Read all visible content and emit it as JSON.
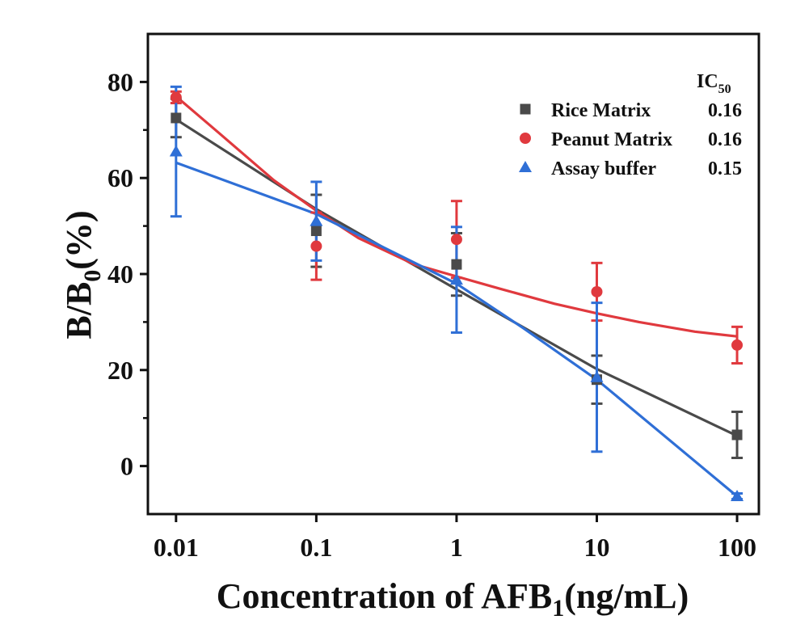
{
  "chart_data": {
    "type": "scatter",
    "x_scale": "log",
    "xlabel_main": "Concentration of AFB",
    "xlabel_sub": "1",
    "xlabel_tail": "(ng/mL)",
    "ylabel_main": "B/B",
    "ylabel_sub": "0",
    "ylabel_tail": "(%)",
    "xlim": [
      0.0063,
      143
    ],
    "ylim": [
      -10,
      90
    ],
    "x_ticks": [
      0.01,
      0.1,
      1,
      10,
      100
    ],
    "x_tick_labels": [
      "0.01",
      "0.1",
      "1",
      "10",
      "100"
    ],
    "y_ticks": [
      0,
      20,
      40,
      60,
      80
    ],
    "y_tick_labels": [
      "0",
      "20",
      "40",
      "60",
      "80"
    ],
    "legend": {
      "position": "top-right",
      "header_main": "IC",
      "header_sub": "50"
    },
    "series": [
      {
        "name": "Rice Matrix",
        "ic50": "0.16",
        "color": "#4a4a4a",
        "marker": "square",
        "x": [
          0.01,
          0.1,
          1,
          10,
          100
        ],
        "y": [
          72.5,
          49,
          42,
          18,
          6.5
        ],
        "err": [
          4.0,
          7.5,
          6.5,
          5.0,
          4.8
        ],
        "fit_x": [
          0.01,
          0.1,
          1,
          10,
          100
        ],
        "fit_y": [
          72.2,
          53.5,
          36.8,
          20.2,
          6.3
        ]
      },
      {
        "name": "Peanut Matrix",
        "ic50": "0.16",
        "color": "#e0393e",
        "marker": "circle",
        "x": [
          0.01,
          0.1,
          1,
          10,
          100
        ],
        "y": [
          76.8,
          45.8,
          47.2,
          36.3,
          25.2
        ],
        "err": [
          1.2,
          7.0,
          8.0,
          6.0,
          3.8
        ],
        "fit_x": [
          0.01,
          0.02,
          0.05,
          0.1,
          0.2,
          0.5,
          1,
          2,
          5,
          10,
          20,
          50,
          100
        ],
        "fit_y": [
          77.0,
          69.5,
          59.5,
          53.2,
          47.5,
          42.0,
          39.5,
          37.0,
          33.8,
          31.8,
          30.0,
          28.0,
          27.0
        ]
      },
      {
        "name": "Assay buffer",
        "ic50": "0.15",
        "color": "#2f6fd6",
        "marker": "triangle",
        "x": [
          0.01,
          0.1,
          1,
          10,
          100
        ],
        "y": [
          65.5,
          51,
          38.8,
          18.5,
          -6.3
        ],
        "err": [
          13.5,
          8.2,
          11.0,
          15.5,
          0.6
        ],
        "fit_x": [
          0.01,
          0.1,
          1,
          3,
          10,
          100
        ],
        "fit_y": [
          63.2,
          52.5,
          38.0,
          28.7,
          18.0,
          -6.3
        ]
      }
    ]
  }
}
